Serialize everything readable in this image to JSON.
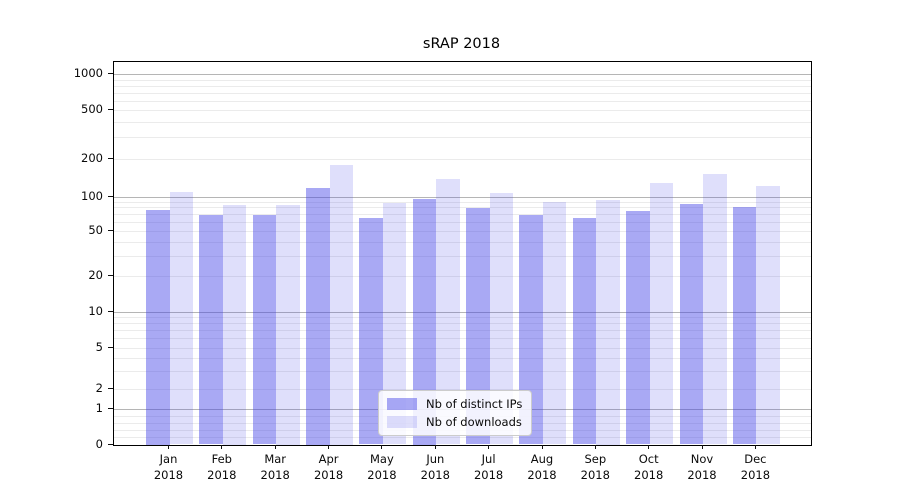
{
  "title": "sRAP 2018",
  "colors": {
    "bar_ips": "rgba(64,64,230,0.45)",
    "bar_downloads": "rgba(64,64,230,0.17)",
    "grid_major": "#b5b5b5",
    "grid_minor": "#ebebeb",
    "spine": "#000000"
  },
  "chart_data": {
    "type": "bar",
    "title": "sRAP 2018",
    "categories": [
      "Jan 2018",
      "Feb 2018",
      "Mar 2018",
      "Apr 2018",
      "May 2018",
      "Jun 2018",
      "Jul 2018",
      "Aug 2018",
      "Sep 2018",
      "Oct 2018",
      "Nov 2018",
      "Dec 2018"
    ],
    "series": [
      {
        "name": "Nb of distinct IPs",
        "values": [
          76,
          69,
          68,
          118,
          65,
          95,
          79,
          68,
          64,
          75,
          86,
          81
        ],
        "color": "rgba(64,64,230,0.45)"
      },
      {
        "name": "Nb of downloads",
        "values": [
          109,
          84,
          85,
          179,
          88,
          139,
          107,
          90,
          93,
          129,
          152,
          121
        ],
        "color": "rgba(64,64,230,0.17)"
      }
    ],
    "xlabel": "",
    "ylabel": "",
    "yscale": "symlog",
    "ylim": [
      0,
      1260
    ],
    "grid": "major and minor horizontal gridlines",
    "legend_position": "inside lower-center"
  },
  "x_axis": {
    "months": [
      "Jan",
      "Feb",
      "Mar",
      "Apr",
      "May",
      "Jun",
      "Jul",
      "Aug",
      "Sep",
      "Oct",
      "Nov",
      "Dec"
    ],
    "year": "2018"
  },
  "y_axis": {
    "ticks": [
      {
        "value": 1000,
        "label": "1000"
      },
      {
        "value": 500,
        "label": "500"
      },
      {
        "value": 200,
        "label": "200"
      },
      {
        "value": 100,
        "label": "100"
      },
      {
        "value": 50,
        "label": "50"
      },
      {
        "value": 20,
        "label": "20"
      },
      {
        "value": 10,
        "label": "10"
      },
      {
        "value": 5,
        "label": "5"
      },
      {
        "value": 2,
        "label": "2"
      },
      {
        "value": 1,
        "label": "1"
      },
      {
        "value": 0,
        "label": "0"
      }
    ],
    "major_grid_values": [
      1,
      10,
      100,
      1000
    ],
    "minor_grid_values": [
      0.2,
      0.4,
      0.6,
      0.8,
      2,
      3,
      4,
      5,
      6,
      7,
      8,
      9,
      20,
      30,
      40,
      50,
      60,
      70,
      80,
      90,
      200,
      300,
      400,
      500,
      600,
      700,
      800,
      900
    ]
  },
  "legend": {
    "items": [
      {
        "label": "Nb of distinct IPs"
      },
      {
        "label": "Nb of downloads"
      }
    ]
  }
}
